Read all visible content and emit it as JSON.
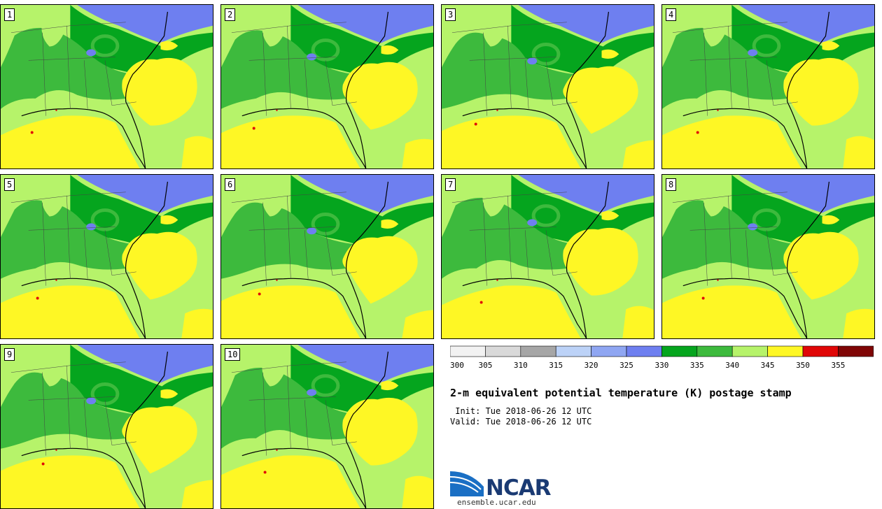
{
  "panels": [
    {
      "label": "1"
    },
    {
      "label": "2"
    },
    {
      "label": "3"
    },
    {
      "label": "4"
    },
    {
      "label": "5"
    },
    {
      "label": "6"
    },
    {
      "label": "7"
    },
    {
      "label": "8"
    },
    {
      "label": "9"
    },
    {
      "label": "10"
    }
  ],
  "colorbar": {
    "colors": [
      "#f2f2f2",
      "#d9d9d9",
      "#a6a6a6",
      "#bcd2f7",
      "#8fa6f2",
      "#6e7ff0",
      "#05a51e",
      "#3dba3d",
      "#b6f36a",
      "#fef725",
      "#e00707",
      "#7f0505"
    ],
    "ticks": [
      "300",
      "305",
      "310",
      "315",
      "320",
      "325",
      "330",
      "335",
      "340",
      "345",
      "350",
      "355"
    ]
  },
  "title": "2-m equivalent potential temperature (K) postage stamp",
  "init": " Init: Tue 2018-06-26 12 UTC",
  "valid": "Valid: Tue 2018-06-26 12 UTC",
  "logo": {
    "word": "NCAR",
    "site": "ensemble.ucar.edu"
  },
  "colors": {
    "light_green": "#b6f36a",
    "mid_green": "#3dba3d",
    "dark_green": "#05a51e",
    "yellow": "#fef725",
    "blue": "#6e7ff0",
    "red": "#e00707"
  }
}
